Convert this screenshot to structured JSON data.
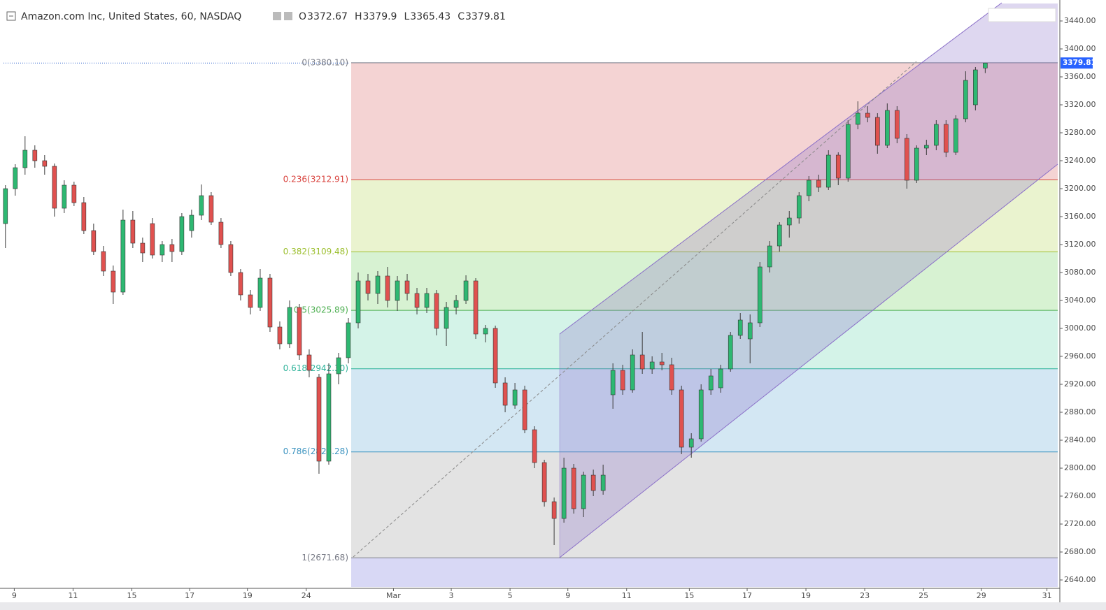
{
  "chart_data": {
    "type": "candlestick",
    "title": "Amazon.com Inc, United States, 60, NASDAQ",
    "header_labels": [
      "O",
      "H",
      "L",
      "C"
    ],
    "colors": {
      "up": "#2eb872",
      "down": "#e0514f",
      "wick": "#3a3a3a"
    },
    "xlim": [
      -0.2,
      107.4
    ],
    "ylim": [
      2630,
      3465
    ],
    "xticks": [
      {
        "value": 0.9,
        "label": "9"
      },
      {
        "value": 6.9,
        "label": "11"
      },
      {
        "value": 12.9,
        "label": "15"
      },
      {
        "value": 18.8,
        "label": "17"
      },
      {
        "value": 24.7,
        "label": "19"
      },
      {
        "value": 30.7,
        "label": "24"
      },
      {
        "value": 39.6,
        "label": "Mar"
      },
      {
        "value": 45.5,
        "label": "3"
      },
      {
        "value": 51.5,
        "label": "5"
      },
      {
        "value": 57.4,
        "label": "9"
      },
      {
        "value": 63.4,
        "label": "11"
      },
      {
        "value": 69.8,
        "label": "15"
      },
      {
        "value": 75.7,
        "label": "17"
      },
      {
        "value": 81.7,
        "label": "19"
      },
      {
        "value": 87.7,
        "label": "23"
      },
      {
        "value": 93.7,
        "label": "25"
      },
      {
        "value": 99.6,
        "label": "29"
      },
      {
        "value": 106.3,
        "label": "31"
      }
    ],
    "yticks": [
      {
        "value": 2640,
        "label": "2640.00"
      },
      {
        "value": 2680,
        "label": "2680.00"
      },
      {
        "value": 2720,
        "label": "2720.00"
      },
      {
        "value": 2760,
        "label": "2760.00"
      },
      {
        "value": 2800,
        "label": "2800.00"
      },
      {
        "value": 2840,
        "label": "2840.00"
      },
      {
        "value": 2880,
        "label": "2880.00"
      },
      {
        "value": 2920,
        "label": "2920.00"
      },
      {
        "value": 2960,
        "label": "2960.00"
      },
      {
        "value": 3000,
        "label": "3000.00"
      },
      {
        "value": 3040,
        "label": "3040.00"
      },
      {
        "value": 3080,
        "label": "3080.00"
      },
      {
        "value": 3120,
        "label": "3120.00"
      },
      {
        "value": 3160,
        "label": "3160.00"
      },
      {
        "value": 3200,
        "label": "3200.00"
      },
      {
        "value": 3240,
        "label": "3240.00"
      },
      {
        "value": 3280,
        "label": "3280.00"
      },
      {
        "value": 3320,
        "label": "3320.00"
      },
      {
        "value": 3360,
        "label": "3360.00"
      },
      {
        "value": 3400,
        "label": "3400.00"
      },
      {
        "value": 3440,
        "label": "3440.00"
      }
    ],
    "fib_levels": [
      {
        "label": "0(3380.10)",
        "value": 3380.1,
        "color": "#787b86",
        "fill": "#f4d3d3"
      },
      {
        "label": "0.236(3212.91)",
        "value": 3212.91,
        "color": "#d9443f",
        "fill": "#eaf3cf"
      },
      {
        "label": "0.382(3109.48)",
        "value": 3109.48,
        "color": "#9cbf2e",
        "fill": "#d7f2d2"
      },
      {
        "label": "0.5(3025.89)",
        "value": 3025.89,
        "color": "#4caf50",
        "fill": "#d4f3e8"
      },
      {
        "label": "0.618(2942.30)",
        "value": 2942.3,
        "color": "#2fb39a",
        "fill": "#d3e7f3"
      },
      {
        "label": "0.786(2823.28)",
        "value": 2823.28,
        "color": "#3d94c0",
        "fill": "#e3e3e3"
      },
      {
        "label": "1(2671.68)",
        "value": 2671.68,
        "color": "#787b86",
        "fill": "#d8d8f5"
      }
    ],
    "ohlc": [
      [
        3150,
        3205,
        3115,
        3200
      ],
      [
        3200,
        3235,
        3190,
        3230
      ],
      [
        3230,
        3275,
        3220,
        3255
      ],
      [
        3255,
        3262,
        3230,
        3240
      ],
      [
        3240,
        3248,
        3220,
        3232
      ],
      [
        3232,
        3236,
        3160,
        3172
      ],
      [
        3172,
        3212,
        3165,
        3205
      ],
      [
        3205,
        3210,
        3175,
        3180
      ],
      [
        3180,
        3188,
        3135,
        3140
      ],
      [
        3140,
        3150,
        3105,
        3110
      ],
      [
        3110,
        3118,
        3075,
        3082
      ],
      [
        3082,
        3090,
        3035,
        3052
      ],
      [
        3052,
        3170,
        3048,
        3155
      ],
      [
        3155,
        3168,
        3115,
        3122
      ],
      [
        3122,
        3130,
        3095,
        3108
      ],
      [
        3150,
        3158,
        3100,
        3105
      ],
      [
        3105,
        3125,
        3095,
        3120
      ],
      [
        3120,
        3128,
        3095,
        3110
      ],
      [
        3110,
        3165,
        3105,
        3160
      ],
      [
        3140,
        3170,
        3130,
        3162
      ],
      [
        3162,
        3206,
        3155,
        3190
      ],
      [
        3190,
        3195,
        3148,
        3152
      ],
      [
        3152,
        3158,
        3115,
        3120
      ],
      [
        3120,
        3125,
        3075,
        3080
      ],
      [
        3080,
        3085,
        3040,
        3048
      ],
      [
        3048,
        3055,
        3020,
        3030
      ],
      [
        3030,
        3085,
        3025,
        3072
      ],
      [
        3072,
        3078,
        2995,
        3002
      ],
      [
        3002,
        3010,
        2970,
        2978
      ],
      [
        2978,
        3040,
        2972,
        3030
      ],
      [
        3030,
        3035,
        2955,
        2962
      ],
      [
        2962,
        2970,
        2930,
        2940
      ],
      [
        2930,
        2935,
        2792,
        2810
      ],
      [
        2810,
        2950,
        2805,
        2935
      ],
      [
        2935,
        2965,
        2920,
        2958
      ],
      [
        2958,
        3015,
        2950,
        3008
      ],
      [
        3008,
        3080,
        3000,
        3068
      ],
      [
        3068,
        3078,
        3040,
        3050
      ],
      [
        3050,
        3082,
        3035,
        3075
      ],
      [
        3075,
        3088,
        3030,
        3040
      ],
      [
        3040,
        3075,
        3025,
        3068
      ],
      [
        3068,
        3078,
        3040,
        3050
      ],
      [
        3050,
        3058,
        3020,
        3030
      ],
      [
        3030,
        3058,
        3022,
        3050
      ],
      [
        3050,
        3055,
        2990,
        3000
      ],
      [
        3000,
        3038,
        2975,
        3030
      ],
      [
        3030,
        3048,
        3020,
        3040
      ],
      [
        3040,
        3076,
        3035,
        3068
      ],
      [
        3068,
        3072,
        2985,
        2992
      ],
      [
        2992,
        3005,
        2980,
        3000
      ],
      [
        3000,
        3004,
        2915,
        2922
      ],
      [
        2922,
        2930,
        2880,
        2890
      ],
      [
        2890,
        2922,
        2885,
        2912
      ],
      [
        2912,
        2918,
        2850,
        2855
      ],
      [
        2855,
        2860,
        2800,
        2808
      ],
      [
        2808,
        2812,
        2745,
        2752
      ],
      [
        2752,
        2758,
        2690,
        2728
      ],
      [
        2728,
        2815,
        2722,
        2800
      ],
      [
        2800,
        2806,
        2735,
        2742
      ],
      [
        2742,
        2795,
        2730,
        2790
      ],
      [
        2790,
        2798,
        2760,
        2768
      ],
      [
        2768,
        2805,
        2762,
        2790
      ],
      [
        2905,
        2950,
        2885,
        2940
      ],
      [
        2940,
        2948,
        2905,
        2912
      ],
      [
        2912,
        2970,
        2908,
        2962
      ],
      [
        2962,
        2995,
        2935,
        2942
      ],
      [
        2942,
        2960,
        2935,
        2952
      ],
      [
        2952,
        2965,
        2940,
        2948
      ],
      [
        2948,
        2958,
        2905,
        2912
      ],
      [
        2912,
        2918,
        2820,
        2830
      ],
      [
        2830,
        2850,
        2815,
        2842
      ],
      [
        2842,
        2920,
        2838,
        2912
      ],
      [
        2912,
        2942,
        2905,
        2932
      ],
      [
        2915,
        2948,
        2908,
        2942
      ],
      [
        2942,
        2995,
        2938,
        2990
      ],
      [
        2990,
        3022,
        2985,
        3012
      ],
      [
        2985,
        3020,
        2950,
        3008
      ],
      [
        3008,
        3095,
        3002,
        3088
      ],
      [
        3088,
        3125,
        3080,
        3118
      ],
      [
        3118,
        3152,
        3110,
        3148
      ],
      [
        3148,
        3168,
        3130,
        3158
      ],
      [
        3158,
        3195,
        3150,
        3190
      ],
      [
        3190,
        3218,
        3182,
        3212
      ],
      [
        3212,
        3220,
        3195,
        3202
      ],
      [
        3202,
        3255,
        3198,
        3248
      ],
      [
        3248,
        3252,
        3205,
        3215
      ],
      [
        3215,
        3298,
        3210,
        3292
      ],
      [
        3292,
        3325,
        3285,
        3308
      ],
      [
        3308,
        3318,
        3295,
        3302
      ],
      [
        3302,
        3308,
        3250,
        3262
      ],
      [
        3262,
        3322,
        3258,
        3312
      ],
      [
        3312,
        3318,
        3265,
        3272
      ],
      [
        3272,
        3278,
        3200,
        3212
      ],
      [
        3212,
        3262,
        3208,
        3258
      ],
      [
        3258,
        3270,
        3248,
        3262
      ],
      [
        3262,
        3298,
        3255,
        3292
      ],
      [
        3292,
        3298,
        3245,
        3252
      ],
      [
        3252,
        3305,
        3248,
        3300
      ],
      [
        3300,
        3368,
        3295,
        3355
      ],
      [
        3320,
        3374,
        3312,
        3370
      ],
      [
        3372.67,
        3379.9,
        3365.43,
        3379.81
      ]
    ]
  }
}
